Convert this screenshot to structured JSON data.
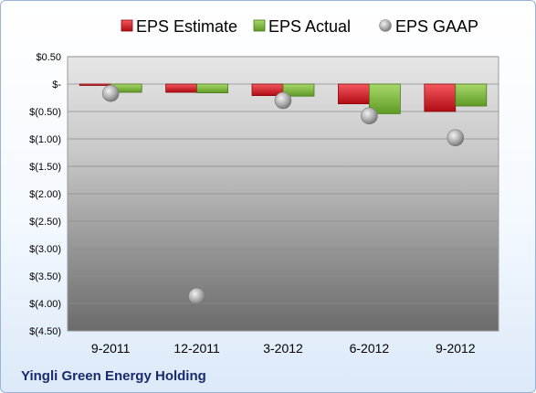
{
  "company": "Yingli Green Energy Holding",
  "legend": [
    "EPS Estimate",
    "EPS Actual",
    "EPS GAAP"
  ],
  "colors": {
    "estimate": "#e31b23",
    "actual": "#7fbf3a",
    "gaap": "#a6a6a6",
    "plot_top": "#e6e6e6",
    "plot_bottom": "#6b6b6b"
  },
  "chart_data": {
    "type": "bar",
    "categories": [
      "9-2011",
      "12-2011",
      "3-2012",
      "6-2012",
      "9-2012"
    ],
    "series": [
      {
        "name": "EPS Estimate",
        "kind": "bar",
        "values": [
          -0.02,
          -0.15,
          -0.21,
          -0.36,
          -0.5
        ]
      },
      {
        "name": "EPS Actual",
        "kind": "bar",
        "values": [
          -0.15,
          -0.16,
          -0.22,
          -0.54,
          -0.4
        ]
      },
      {
        "name": "EPS GAAP",
        "kind": "scatter",
        "values": [
          -0.17,
          -3.87,
          -0.3,
          -0.58,
          -0.98
        ]
      }
    ],
    "ylim": [
      -4.5,
      0.5
    ],
    "yticks": [
      0.5,
      0,
      -0.5,
      -1.0,
      -1.5,
      -2.0,
      -2.5,
      -3.0,
      -3.5,
      -4.0,
      -4.5
    ],
    "ytick_labels": [
      "$0.50",
      "$-",
      "$(0.50)",
      "$(1.00)",
      "$(1.50)",
      "$(2.00)",
      "$(2.50)",
      "$(3.00)",
      "$(3.50)",
      "$(4.00)",
      "$(4.50)"
    ],
    "grid": true,
    "legend_position": "top"
  }
}
